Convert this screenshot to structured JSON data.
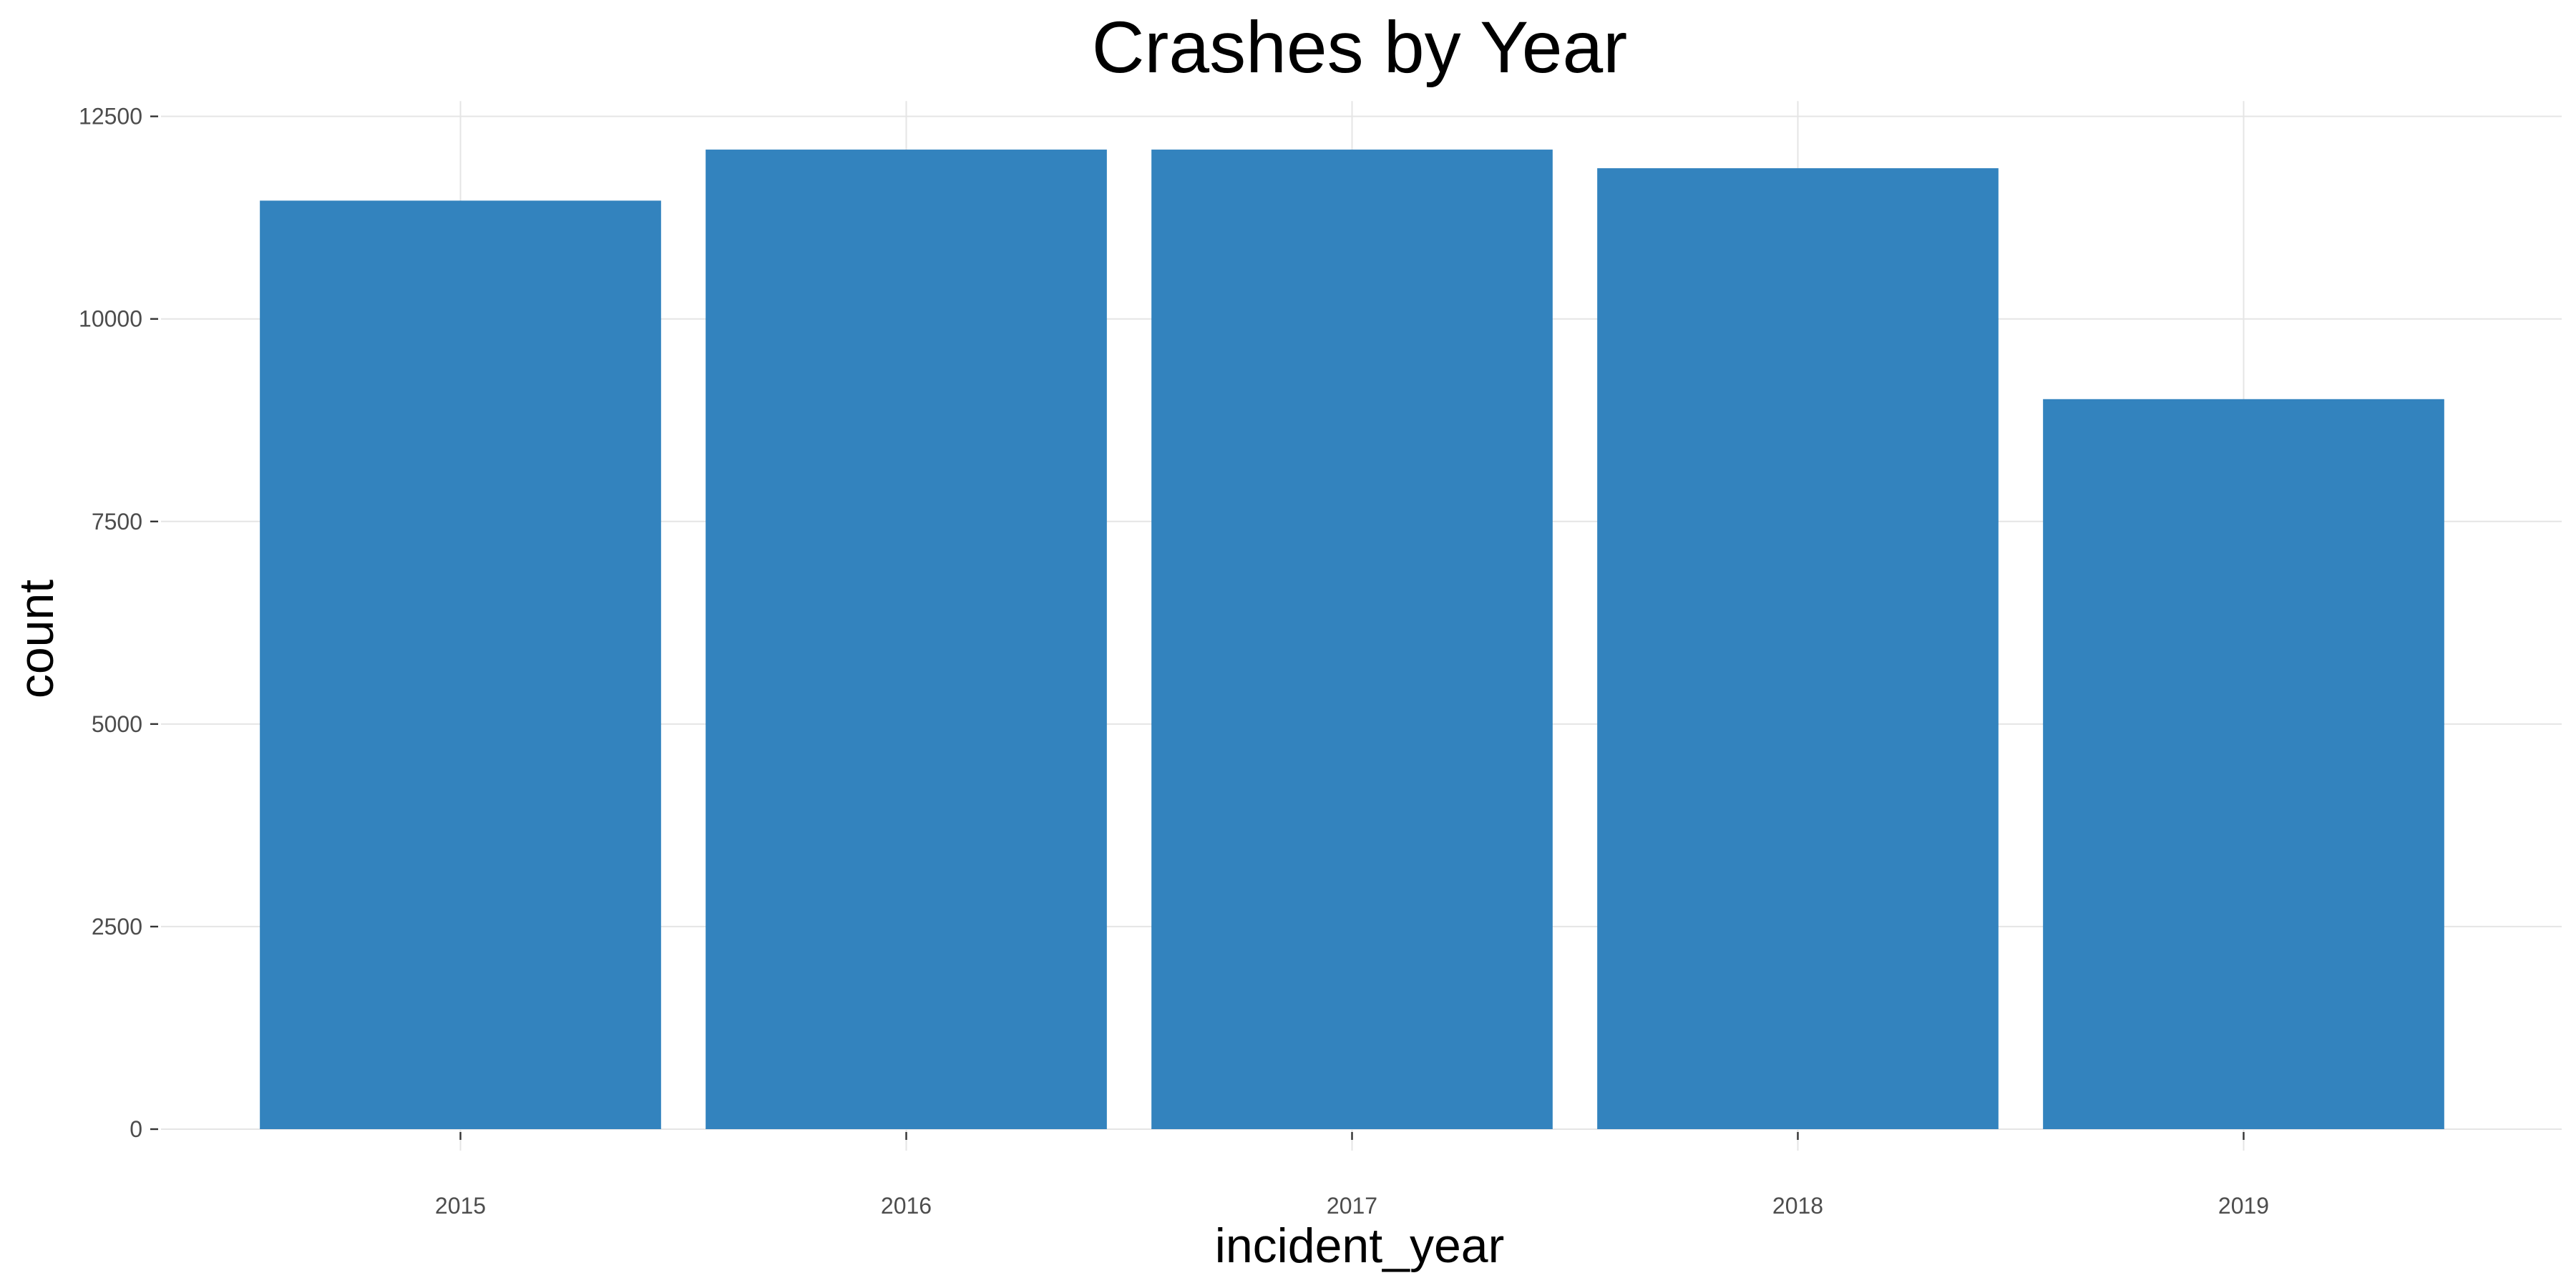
{
  "chart_data": {
    "type": "bar",
    "title": "Crashes by Year",
    "xlabel": "incident_year",
    "ylabel": "count",
    "categories": [
      "2015",
      "2016",
      "2017",
      "2018",
      "2019"
    ],
    "values": [
      11460,
      12090,
      12090,
      11860,
      9010
    ],
    "ylim": [
      0,
      12600
    ],
    "yticks": [
      0,
      2500,
      5000,
      7500,
      10000,
      12500
    ],
    "grid": true,
    "legend": "none",
    "bar_color": "#3383BE",
    "gridline_color": "#E5E5E5"
  }
}
